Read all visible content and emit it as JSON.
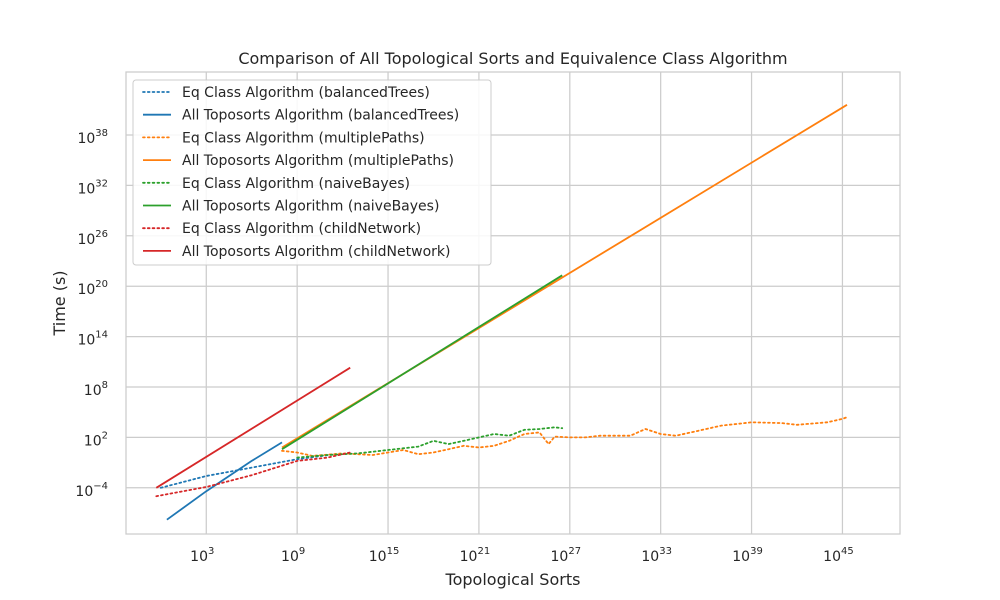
{
  "chart_data": {
    "type": "line",
    "title": "Comparison of All Topological Sorts and Equivalence Class Algorithm",
    "xlabel": "Topological Sorts",
    "ylabel": "Time (s)",
    "xscale": "log",
    "yscale": "log",
    "xlim_exponent": [
      -2.3,
      48.8
    ],
    "ylim_exponent": [
      -9.5,
      45.5
    ],
    "x_ticks": [
      {
        "exp": 3,
        "label": "10",
        "sup": "3"
      },
      {
        "exp": 9,
        "label": "10",
        "sup": "9"
      },
      {
        "exp": 15,
        "label": "10",
        "sup": "15"
      },
      {
        "exp": 21,
        "label": "10",
        "sup": "21"
      },
      {
        "exp": 27,
        "label": "10",
        "sup": "27"
      },
      {
        "exp": 33,
        "label": "10",
        "sup": "33"
      },
      {
        "exp": 39,
        "label": "10",
        "sup": "39"
      },
      {
        "exp": 45,
        "label": "10",
        "sup": "45"
      }
    ],
    "y_ticks": [
      {
        "exp": -4,
        "label": "10",
        "sup": "−4"
      },
      {
        "exp": 2,
        "label": "10",
        "sup": "2"
      },
      {
        "exp": 8,
        "label": "10",
        "sup": "8"
      },
      {
        "exp": 14,
        "label": "10",
        "sup": "14"
      },
      {
        "exp": 20,
        "label": "10",
        "sup": "20"
      },
      {
        "exp": 26,
        "label": "10",
        "sup": "26"
      },
      {
        "exp": 32,
        "label": "10",
        "sup": "32"
      },
      {
        "exp": 38,
        "label": "10",
        "sup": "38"
      }
    ],
    "grid": true,
    "legend_position": "upper-left",
    "series": [
      {
        "name": "Eq Class Algorithm (balancedTrees)",
        "color": "#1f77b4",
        "style": "dotted",
        "points": [
          [
            0,
            -4.0
          ],
          [
            3,
            -2.6
          ],
          [
            6,
            -1.6
          ],
          [
            9,
            -0.6
          ],
          [
            11.5,
            0.0
          ]
        ]
      },
      {
        "name": "All Toposorts Algorithm (balancedTrees)",
        "color": "#1f77b4",
        "style": "solid",
        "points": [
          [
            0.4,
            -7.8
          ],
          [
            3,
            -4.4
          ],
          [
            6,
            -0.8
          ],
          [
            8,
            1.4
          ]
        ]
      },
      {
        "name": "Eq Class Algorithm (multiplePaths)",
        "color": "#ff7f0e",
        "style": "dotted",
        "points": [
          [
            8,
            0.4
          ],
          [
            9,
            0.2
          ],
          [
            10,
            -0.2
          ],
          [
            12,
            0.1
          ],
          [
            14,
            -0.1
          ],
          [
            15,
            0.2
          ],
          [
            16,
            0.5
          ],
          [
            17,
            0.0
          ],
          [
            18,
            0.2
          ],
          [
            19,
            0.6
          ],
          [
            20,
            1.0
          ],
          [
            21,
            0.8
          ],
          [
            22,
            1.0
          ],
          [
            23,
            1.6
          ],
          [
            24,
            2.4
          ],
          [
            25,
            2.6
          ],
          [
            25.6,
            1.2
          ],
          [
            26,
            2.1
          ],
          [
            27,
            2.0
          ],
          [
            28,
            2.0
          ],
          [
            29,
            2.2
          ],
          [
            31,
            2.2
          ],
          [
            32,
            3.0
          ],
          [
            33,
            2.4
          ],
          [
            34,
            2.2
          ],
          [
            35,
            2.6
          ],
          [
            37,
            3.4
          ],
          [
            38,
            3.6
          ],
          [
            39,
            3.8
          ],
          [
            41,
            3.7
          ],
          [
            42,
            3.5
          ],
          [
            44,
            3.8
          ],
          [
            45,
            4.2
          ],
          [
            45.3,
            4.4
          ]
        ]
      },
      {
        "name": "All Toposorts Algorithm (multiplePaths)",
        "color": "#ff7f0e",
        "style": "solid",
        "points": [
          [
            8,
            0.8
          ],
          [
            45.3,
            41.6
          ]
        ]
      },
      {
        "name": "Eq Class Algorithm (naiveBayes)",
        "color": "#2ca02c",
        "style": "dotted",
        "points": [
          [
            9,
            -0.4
          ],
          [
            11,
            -0.1
          ],
          [
            13,
            0.1
          ],
          [
            15,
            0.5
          ],
          [
            17,
            0.9
          ],
          [
            18,
            1.6
          ],
          [
            19,
            1.2
          ],
          [
            20,
            1.6
          ],
          [
            21,
            2.0
          ],
          [
            22,
            2.4
          ],
          [
            23,
            2.2
          ],
          [
            24,
            2.9
          ],
          [
            25,
            3.0
          ],
          [
            26,
            3.2
          ],
          [
            26.5,
            3.1
          ]
        ]
      },
      {
        "name": "All Toposorts Algorithm (naiveBayes)",
        "color": "#2ca02c",
        "style": "solid",
        "points": [
          [
            8,
            0.6
          ],
          [
            26.5,
            21.3
          ]
        ]
      },
      {
        "name": "Eq Class Algorithm (childNetwork)",
        "color": "#d62728",
        "style": "dotted",
        "points": [
          [
            -0.3,
            -5.0
          ],
          [
            3,
            -3.9
          ],
          [
            6,
            -2.5
          ],
          [
            9,
            -0.8
          ],
          [
            11,
            -0.4
          ],
          [
            12.5,
            0.2
          ]
        ]
      },
      {
        "name": "All Toposorts Algorithm (childNetwork)",
        "color": "#d62728",
        "style": "solid",
        "points": [
          [
            -0.3,
            -4.0
          ],
          [
            12.5,
            10.3
          ]
        ]
      }
    ]
  }
}
